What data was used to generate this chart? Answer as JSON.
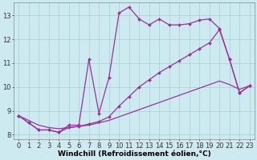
{
  "background_color": "#cdeaf0",
  "line_color": "#993399",
  "grid_color": "#aad4da",
  "xlabel": "Windchill (Refroidissement éolien,°C)",
  "ylim_min": 7.8,
  "ylim_max": 13.55,
  "xlim_min": -0.5,
  "xlim_max": 23.5,
  "yticks": [
    8,
    9,
    10,
    11,
    12,
    13
  ],
  "xticks": [
    0,
    1,
    2,
    3,
    4,
    5,
    6,
    7,
    8,
    9,
    10,
    11,
    12,
    13,
    14,
    15,
    16,
    17,
    18,
    19,
    20,
    21,
    22,
    23
  ],
  "line1_x": [
    0,
    1,
    2,
    3,
    4,
    5,
    6,
    7,
    8,
    9,
    10,
    11,
    12,
    13,
    14,
    15,
    16,
    17,
    18,
    19,
    20,
    21,
    22,
    23
  ],
  "line1_y": [
    8.8,
    8.5,
    8.2,
    8.2,
    8.1,
    8.4,
    8.4,
    11.15,
    8.9,
    10.4,
    13.1,
    13.35,
    12.85,
    12.6,
    12.85,
    12.6,
    12.6,
    12.65,
    12.8,
    12.85,
    12.45,
    11.15,
    9.75,
    10.05
  ],
  "line2_x": [
    0,
    1,
    2,
    3,
    4,
    5,
    6,
    7,
    8,
    9,
    10,
    11,
    12,
    13,
    14,
    15,
    16,
    17,
    18,
    19,
    20,
    21,
    22,
    23
  ],
  "line2_y": [
    8.8,
    8.6,
    8.4,
    8.3,
    8.25,
    8.3,
    8.35,
    8.4,
    8.5,
    8.6,
    8.75,
    8.9,
    9.05,
    9.2,
    9.35,
    9.5,
    9.65,
    9.8,
    9.95,
    10.1,
    10.25,
    10.1,
    9.9,
    10.05
  ],
  "line3_x": [
    0,
    1,
    2,
    3,
    4,
    5,
    6,
    7,
    8,
    9,
    10,
    11,
    12,
    13,
    14,
    15,
    16,
    17,
    18,
    19,
    20,
    21,
    22,
    23
  ],
  "line3_y": [
    8.8,
    8.5,
    8.2,
    8.2,
    8.1,
    8.3,
    8.35,
    8.45,
    8.55,
    8.75,
    9.2,
    9.6,
    10.0,
    10.3,
    10.6,
    10.85,
    11.1,
    11.35,
    11.6,
    11.85,
    12.4,
    11.15,
    9.75,
    10.05
  ],
  "marker": "D",
  "marker_size": 2.0,
  "linewidth": 0.9,
  "xlabel_fontsize": 6.5,
  "tick_fontsize": 6.0
}
